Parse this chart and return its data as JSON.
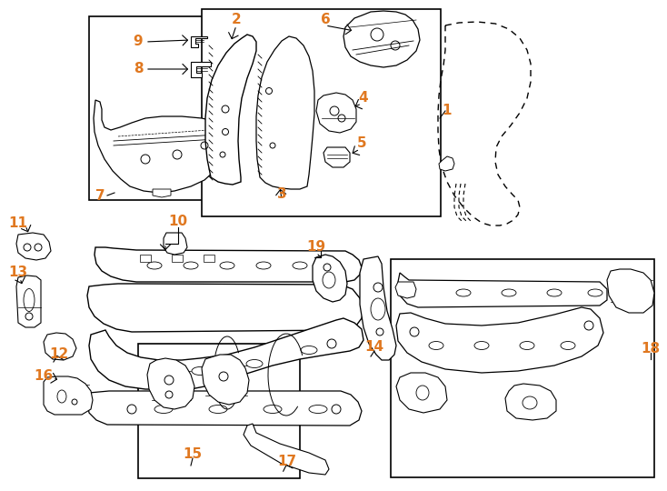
{
  "bg": "#ffffff",
  "lc": "#000000",
  "nc": "#e07820",
  "fw": 7.34,
  "fh": 5.4,
  "dpi": 100
}
